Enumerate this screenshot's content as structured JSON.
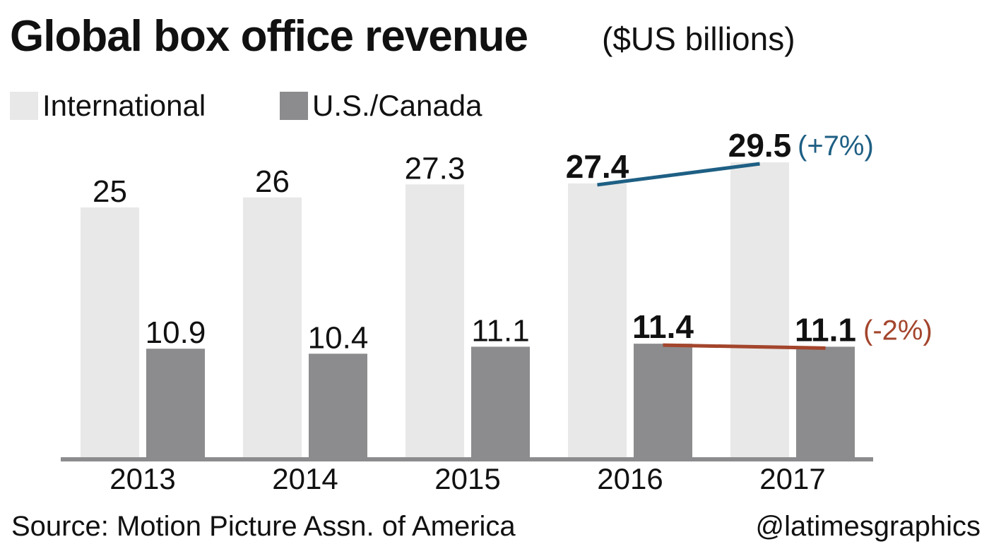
{
  "header": {
    "title": "Global box office revenue",
    "subtitle": "($US billions)"
  },
  "chart_data": {
    "type": "bar",
    "categories": [
      "2013",
      "2014",
      "2015",
      "2016",
      "2017"
    ],
    "series": [
      {
        "name": "International",
        "values": [
          25,
          26,
          27.3,
          27.4,
          29.5
        ],
        "labels": [
          "25",
          "26",
          "27.3",
          "27.4",
          "29.5"
        ],
        "color": "#e8e8e8"
      },
      {
        "name": "U.S./Canada",
        "values": [
          10.9,
          10.4,
          11.1,
          11.4,
          11.1
        ],
        "labels": [
          "10.9",
          "10.4",
          "11.1",
          "11.4",
          "11.1"
        ],
        "color": "#8c8c8e"
      }
    ],
    "highlight_years": [
      "2016",
      "2017"
    ],
    "annotations": [
      {
        "series": "International",
        "from": "2016",
        "to": "2017",
        "text": "(+7%)",
        "color": "#1e5f84"
      },
      {
        "series": "U.S./Canada",
        "from": "2016",
        "to": "2017",
        "text": "(-2%)",
        "color": "#a3452c"
      }
    ],
    "ylim": [
      0,
      36
    ],
    "grid": false,
    "legend_position": "top-left"
  },
  "footer": {
    "source": "Source: Motion Picture Assn. of America",
    "credit": "@latimesgraphics"
  }
}
